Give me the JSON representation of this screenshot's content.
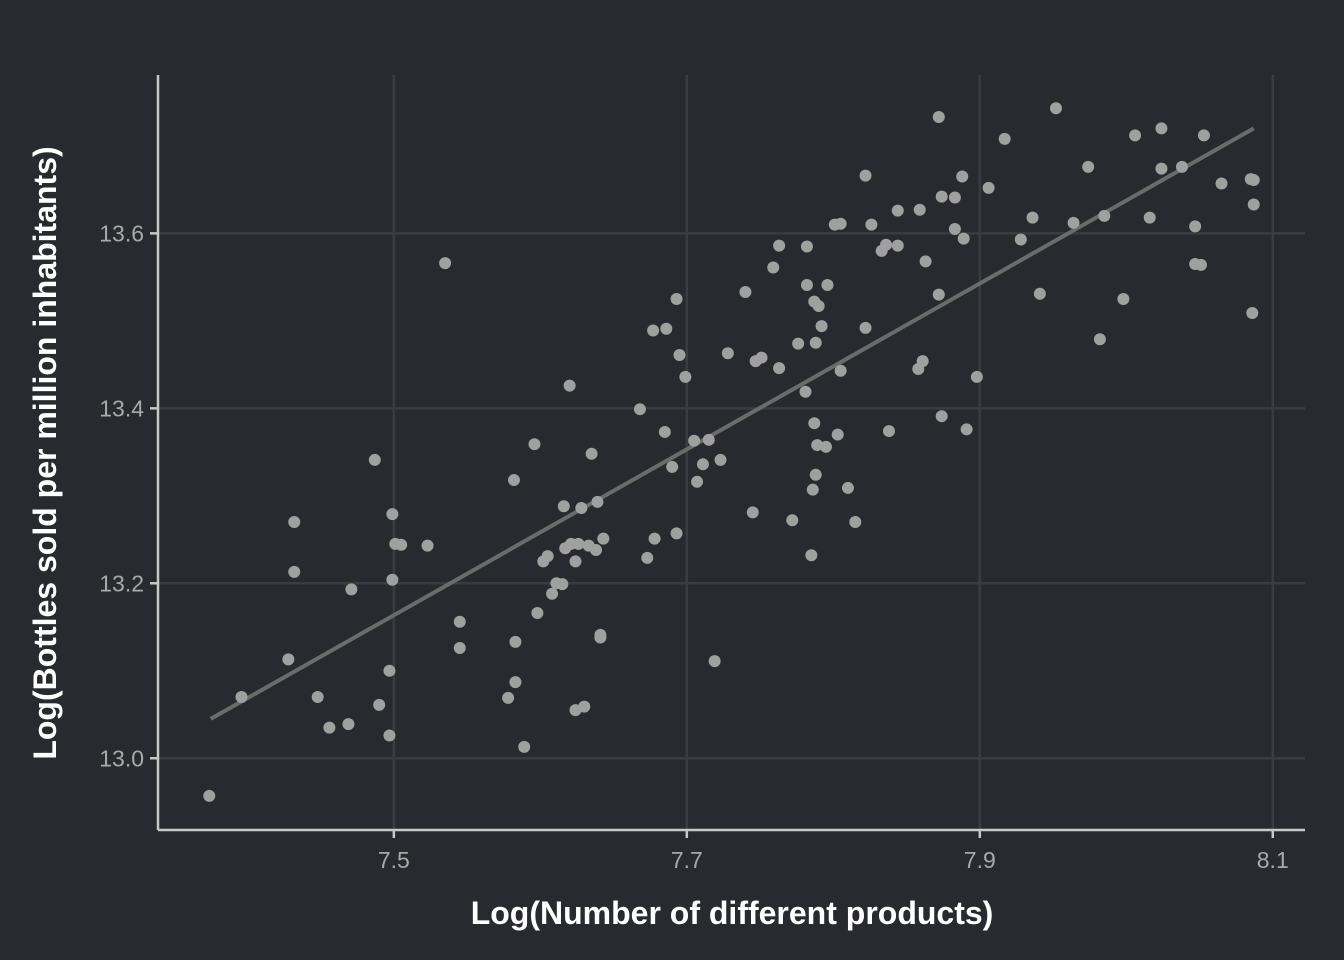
{
  "chart_data": {
    "type": "scatter",
    "title": "",
    "xlabel": "Log(Number of different products)",
    "ylabel": "Log(Bottles sold per million inhabitants)",
    "xlim": [
      7.339,
      8.122
    ],
    "ylim": [
      12.918,
      13.781
    ],
    "xticks": [
      "7.5",
      "7.7",
      "7.9",
      "8.1"
    ],
    "yticks": [
      "13.0",
      "13.2",
      "13.4",
      "13.6"
    ],
    "grid": true,
    "colors": {
      "background": "#282a2f",
      "points": "#a0a0a0",
      "fit_line": "#6b6b6b",
      "grid": "#3a3c42",
      "axis": "#c8c8c8"
    },
    "fit_line": {
      "x": [
        7.375,
        8.087
      ],
      "y": [
        13.045,
        13.72
      ]
    },
    "points": [
      [
        7.374,
        12.957
      ],
      [
        7.396,
        13.07
      ],
      [
        7.428,
        13.113
      ],
      [
        7.432,
        13.27
      ],
      [
        7.432,
        13.213
      ],
      [
        7.448,
        13.07
      ],
      [
        7.456,
        13.035
      ],
      [
        7.469,
        13.039
      ],
      [
        7.471,
        13.193
      ],
      [
        7.487,
        13.341
      ],
      [
        7.49,
        13.061
      ],
      [
        7.497,
        13.026
      ],
      [
        7.497,
        13.1
      ],
      [
        7.499,
        13.279
      ],
      [
        7.499,
        13.204
      ],
      [
        7.501,
        13.245
      ],
      [
        7.505,
        13.244
      ],
      [
        7.523,
        13.243
      ],
      [
        7.535,
        13.566
      ],
      [
        7.545,
        13.156
      ],
      [
        7.545,
        13.126
      ],
      [
        7.578,
        13.069
      ],
      [
        7.582,
        13.318
      ],
      [
        7.583,
        13.133
      ],
      [
        7.583,
        13.087
      ],
      [
        7.589,
        13.013
      ],
      [
        7.596,
        13.359
      ],
      [
        7.598,
        13.166
      ],
      [
        7.602,
        13.225
      ],
      [
        7.605,
        13.231
      ],
      [
        7.608,
        13.188
      ],
      [
        7.611,
        13.2
      ],
      [
        7.615,
        13.199
      ],
      [
        7.616,
        13.288
      ],
      [
        7.617,
        13.24
      ],
      [
        7.62,
        13.426
      ],
      [
        7.621,
        13.245
      ],
      [
        7.624,
        13.225
      ],
      [
        7.624,
        13.055
      ],
      [
        7.626,
        13.245
      ],
      [
        7.628,
        13.286
      ],
      [
        7.63,
        13.059
      ],
      [
        7.633,
        13.243
      ],
      [
        7.635,
        13.348
      ],
      [
        7.638,
        13.238
      ],
      [
        7.639,
        13.293
      ],
      [
        7.641,
        13.141
      ],
      [
        7.641,
        13.138
      ],
      [
        7.643,
        13.251
      ],
      [
        7.668,
        13.399
      ],
      [
        7.673,
        13.229
      ],
      [
        7.677,
        13.489
      ],
      [
        7.678,
        13.251
      ],
      [
        7.685,
        13.373
      ],
      [
        7.686,
        13.491
      ],
      [
        7.69,
        13.333
      ],
      [
        7.693,
        13.257
      ],
      [
        7.693,
        13.525
      ],
      [
        7.695,
        13.461
      ],
      [
        7.699,
        13.436
      ],
      [
        7.705,
        13.363
      ],
      [
        7.707,
        13.316
      ],
      [
        7.711,
        13.336
      ],
      [
        7.715,
        13.364
      ],
      [
        7.719,
        13.111
      ],
      [
        7.723,
        13.341
      ],
      [
        7.728,
        13.463
      ],
      [
        7.74,
        13.533
      ],
      [
        7.745,
        13.281
      ],
      [
        7.747,
        13.454
      ],
      [
        7.751,
        13.458
      ],
      [
        7.759,
        13.561
      ],
      [
        7.763,
        13.446
      ],
      [
        7.763,
        13.586
      ],
      [
        7.772,
        13.272
      ],
      [
        7.776,
        13.474
      ],
      [
        7.781,
        13.419
      ],
      [
        7.782,
        13.541
      ],
      [
        7.782,
        13.585
      ],
      [
        7.785,
        13.232
      ],
      [
        7.786,
        13.307
      ],
      [
        7.787,
        13.383
      ],
      [
        7.787,
        13.522
      ],
      [
        7.788,
        13.324
      ],
      [
        7.788,
        13.475
      ],
      [
        7.789,
        13.358
      ],
      [
        7.79,
        13.517
      ],
      [
        7.792,
        13.494
      ],
      [
        7.795,
        13.356
      ],
      [
        7.796,
        13.541
      ],
      [
        7.801,
        13.61
      ],
      [
        7.803,
        13.37
      ],
      [
        7.805,
        13.611
      ],
      [
        7.805,
        13.443
      ],
      [
        7.81,
        13.309
      ],
      [
        7.815,
        13.27
      ],
      [
        7.822,
        13.666
      ],
      [
        7.822,
        13.492
      ],
      [
        7.826,
        13.61
      ],
      [
        7.833,
        13.58
      ],
      [
        7.836,
        13.587
      ],
      [
        7.838,
        13.374
      ],
      [
        7.844,
        13.626
      ],
      [
        7.844,
        13.586
      ],
      [
        7.858,
        13.445
      ],
      [
        7.859,
        13.627
      ],
      [
        7.861,
        13.454
      ],
      [
        7.863,
        13.568
      ],
      [
        7.872,
        13.733
      ],
      [
        7.872,
        13.53
      ],
      [
        7.874,
        13.642
      ],
      [
        7.874,
        13.391
      ],
      [
        7.883,
        13.641
      ],
      [
        7.883,
        13.605
      ],
      [
        7.888,
        13.665
      ],
      [
        7.889,
        13.594
      ],
      [
        7.891,
        13.376
      ],
      [
        7.898,
        13.436
      ],
      [
        7.906,
        13.652
      ],
      [
        7.917,
        13.708
      ],
      [
        7.928,
        13.593
      ],
      [
        7.936,
        13.618
      ],
      [
        7.941,
        13.531
      ],
      [
        7.952,
        13.743
      ],
      [
        7.964,
        13.612
      ],
      [
        7.974,
        13.676
      ],
      [
        7.982,
        13.479
      ],
      [
        7.985,
        13.62
      ],
      [
        7.998,
        13.525
      ],
      [
        8.006,
        13.712
      ],
      [
        8.016,
        13.618
      ],
      [
        8.024,
        13.72
      ],
      [
        8.024,
        13.674
      ],
      [
        8.038,
        13.676
      ],
      [
        8.047,
        13.608
      ],
      [
        8.047,
        13.565
      ],
      [
        8.051,
        13.564
      ],
      [
        8.053,
        13.712
      ],
      [
        8.065,
        13.657
      ],
      [
        8.085,
        13.662
      ],
      [
        8.087,
        13.661
      ],
      [
        8.087,
        13.633
      ],
      [
        8.086,
        13.509
      ]
    ]
  }
}
